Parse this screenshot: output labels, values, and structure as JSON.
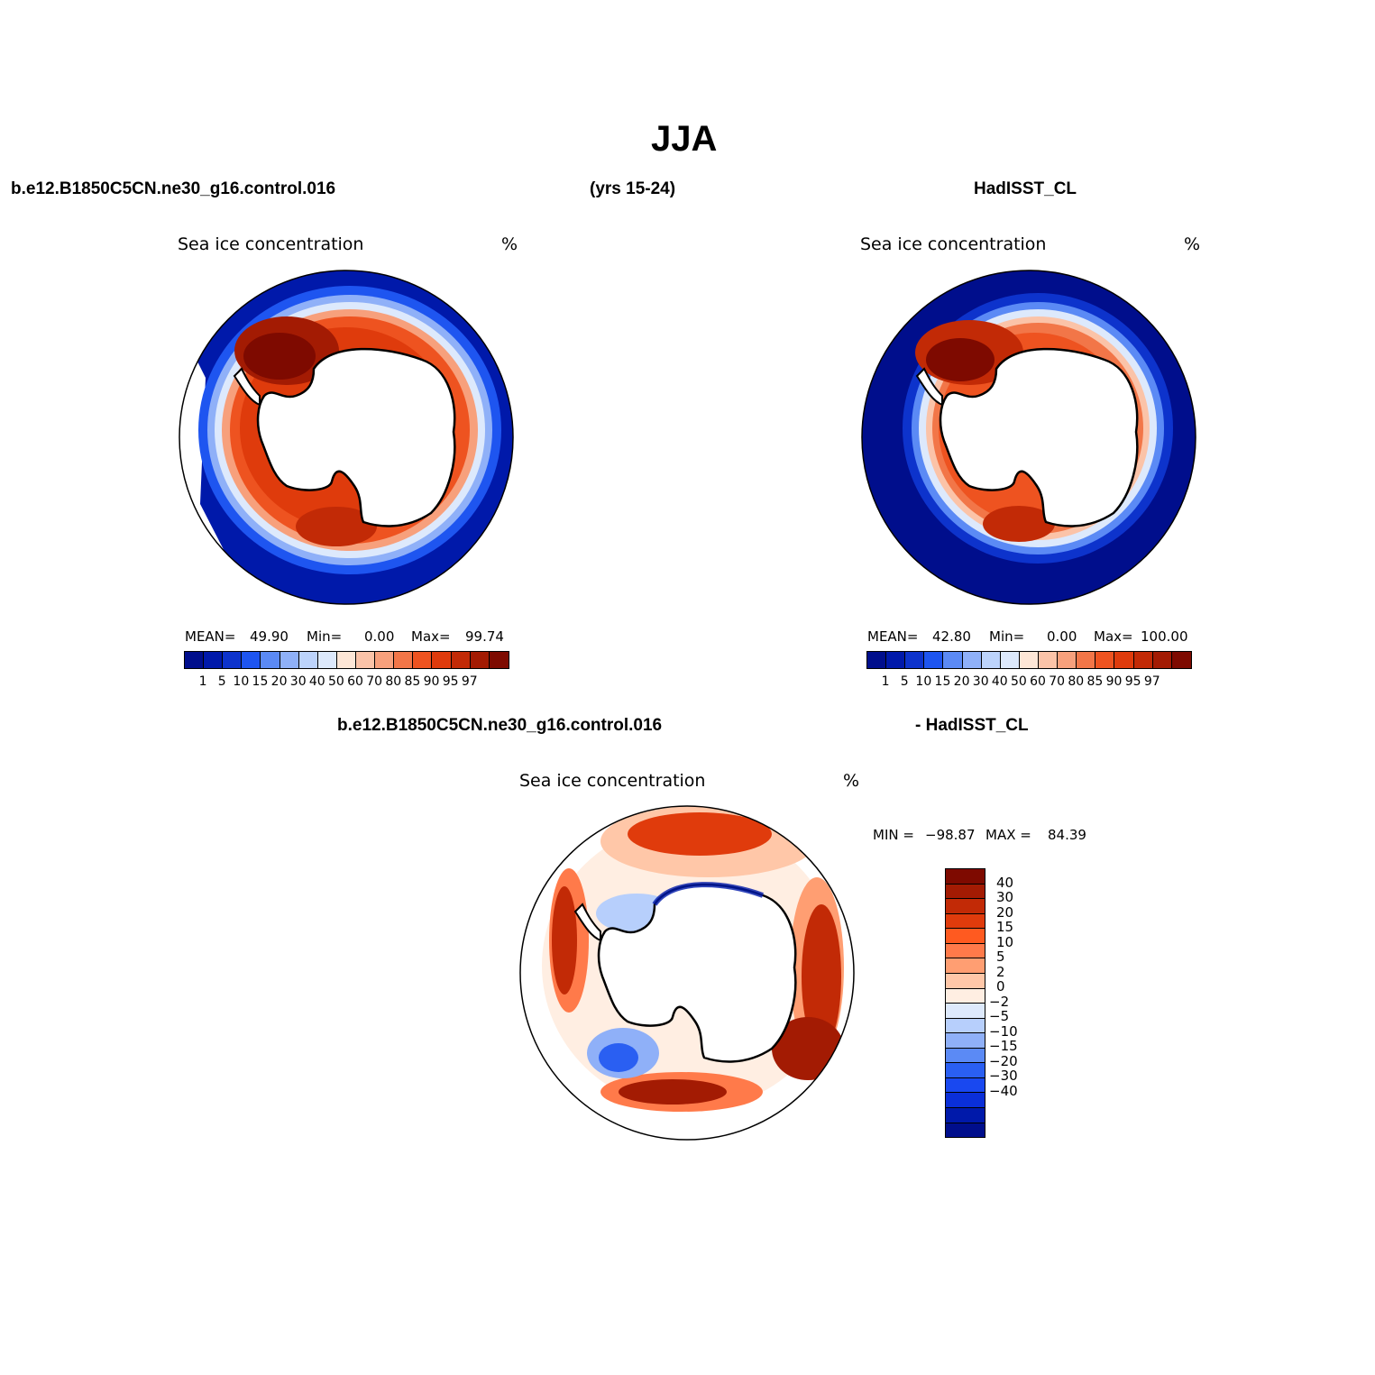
{
  "page": {
    "title": "JJA",
    "left_header": "b.e12.B1850C5CN.ne30_g16.control.016",
    "center_header": "(yrs 15-24)",
    "right_header": "HadISST_CL",
    "diff_header_left": "b.e12.B1850C5CN.ne30_g16.control.016",
    "diff_header_right": "- HadISST_CL"
  },
  "colors": {
    "concentration_scale": [
      "#000e8c",
      "#0019aa",
      "#0d33cc",
      "#1e55f0",
      "#5b8af5",
      "#8fb0f8",
      "#bcd3fb",
      "#dde9fc",
      "#fde6d6",
      "#fbc3a8",
      "#f7a07c",
      "#f27648",
      "#ee5320",
      "#df3b0c",
      "#c22a06",
      "#a31b03",
      "#7e0a00"
    ],
    "difference_scale": [
      "#7e0a00",
      "#a31b03",
      "#c22a06",
      "#e03b0c",
      "#ff5a20",
      "#ff7a4a",
      "#ff9e72",
      "#ffc7a8",
      "#ffeee2",
      "#dde9fc",
      "#b7cffc",
      "#8fb0f8",
      "#5b8af5",
      "#2a5ff2",
      "#1948f0",
      "#0a2fd8",
      "#0019aa",
      "#000e8c"
    ]
  },
  "panels": [
    {
      "name": "model",
      "variable": "Sea ice concentration",
      "units": "%",
      "stats": {
        "mean_label": "MEAN=",
        "mean": "49.90",
        "min_label": "Min=",
        "min": "0.00",
        "max_label": "Max=",
        "max": "99.74"
      }
    },
    {
      "name": "obs",
      "variable": "Sea ice concentration",
      "units": "%",
      "stats": {
        "mean_label": "MEAN=",
        "mean": "42.80",
        "min_label": "Min=",
        "min": "0.00",
        "max_label": "Max=",
        "max": "100.00"
      }
    },
    {
      "name": "difference",
      "variable": "Sea ice concentration",
      "units": "%",
      "stats": {
        "min_label": "MIN =",
        "min": "−98.87",
        "max_label": "MAX =",
        "max": "84.39"
      }
    }
  ],
  "colorbar_levels": [
    "1",
    "5",
    "10",
    "15",
    "20",
    "30",
    "40",
    "50",
    "60",
    "70",
    "80",
    "85",
    "90",
    "95",
    "97"
  ],
  "diff_colorbar_levels": [
    "40",
    "30",
    "20",
    "15",
    "10",
    "5",
    "2",
    "0",
    "−2",
    "−5",
    "−10",
    "−15",
    "−20",
    "−30",
    "−40"
  ]
}
